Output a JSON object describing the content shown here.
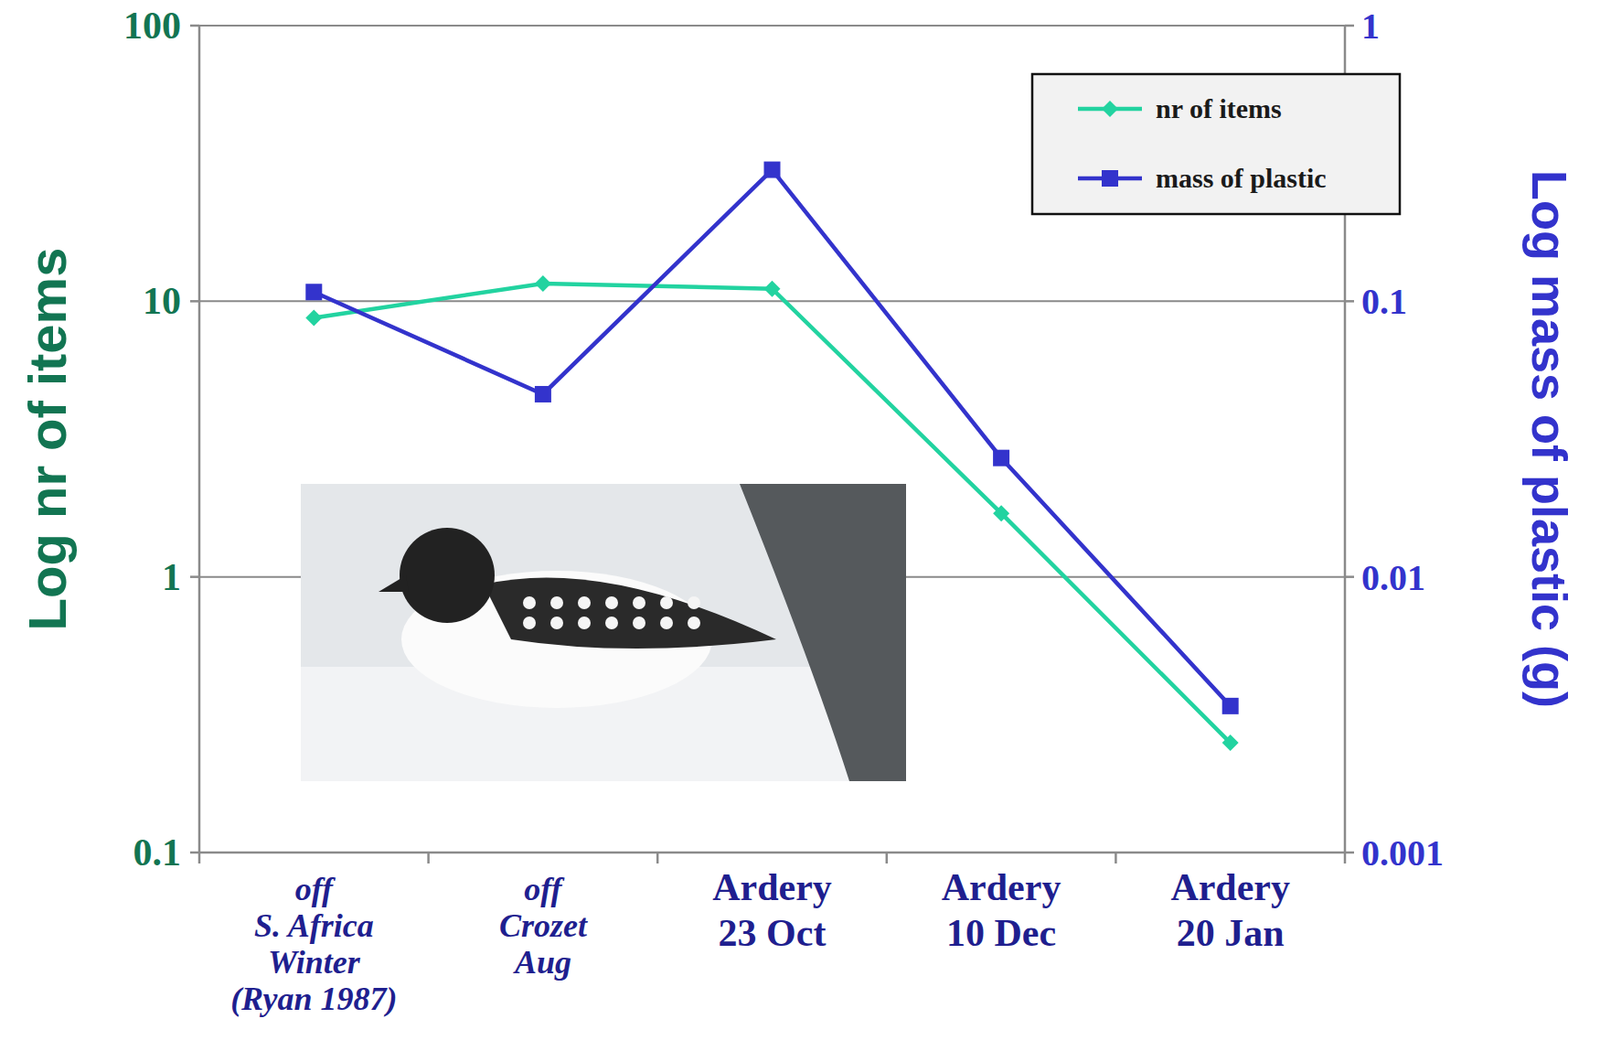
{
  "chart_data": {
    "type": "line",
    "categories": [
      "off\nS. Africa\nWinter\n(Ryan 1987)",
      "off\nCrozet\nAug",
      "Ardery\n23 Oct",
      "Ardery\n10 Dec",
      "Ardery\n20 Jan"
    ],
    "series": [
      {
        "name": "nr of items",
        "color": "#22d3a0",
        "marker": "diamond",
        "values": [
          8.7,
          11.6,
          11.1,
          1.7,
          0.25
        ]
      },
      {
        "name": "mass of plastic",
        "color": "#3333cc",
        "marker": "square",
        "axis": "y2",
        "values": [
          0.108,
          0.046,
          0.3,
          0.027,
          0.0034
        ]
      }
    ],
    "y_label": "Log nr of items",
    "y2_label": "Log mass of plastic (g)",
    "ylim": [
      0.1,
      100
    ],
    "yticks": [
      0.1,
      1,
      10,
      100
    ],
    "y2lim": [
      0.001,
      1
    ],
    "y2ticks": [
      0.001,
      0.01,
      0.1,
      1
    ],
    "log": "y",
    "grid": true,
    "legend": "upper right"
  }
}
